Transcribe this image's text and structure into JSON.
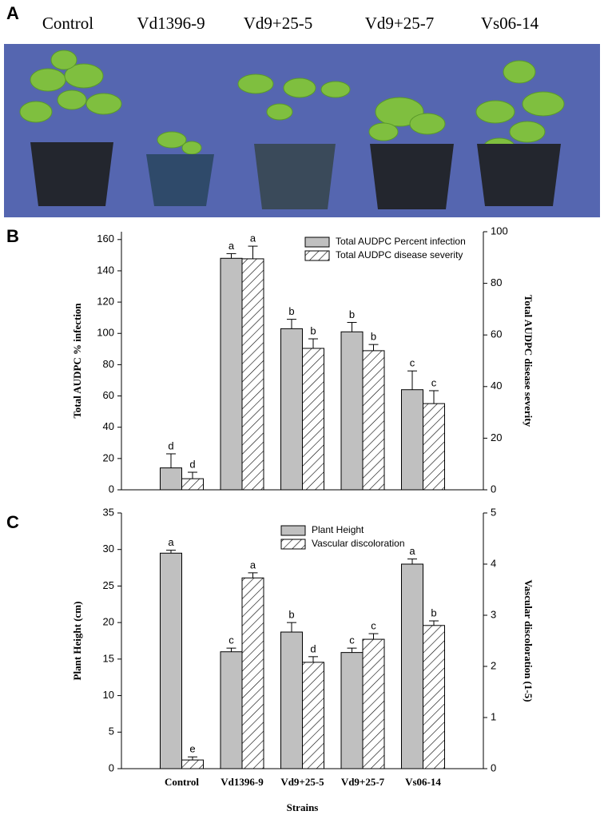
{
  "panel_a": {
    "label": "A",
    "captions": [
      "Control",
      "Vd1396-9",
      "Vd9+25-5",
      "Vd9+25-7",
      "Vs06-14"
    ]
  },
  "chart_data": [
    {
      "type": "bar",
      "panel_label": "B",
      "categories": [
        null,
        null,
        null,
        null,
        null
      ],
      "y_label": "Total AUDPC % infection",
      "y2_label": "Total AUDPC disease severity",
      "ylim": [
        0,
        165
      ],
      "yticks": [
        0,
        20,
        40,
        60,
        80,
        100,
        120,
        140,
        160
      ],
      "y2lim": [
        0,
        100
      ],
      "y2ticks": [
        0,
        20,
        40,
        60,
        80,
        100
      ],
      "legend": "upper right",
      "series": [
        {
          "name": "Total AUDPC Percent infection",
          "color": "#c0c0c0",
          "pattern": "solid",
          "values": [
            14,
            148,
            103,
            101,
            64
          ],
          "errors": [
            9,
            3,
            6,
            6,
            12
          ],
          "letters": [
            "d",
            "a",
            "b",
            "b",
            "c"
          ]
        },
        {
          "name": "Total AUDPC disease severity",
          "color": "#ffffff",
          "pattern": "hatch",
          "axis": "y2",
          "values": [
            4.3,
            89.5,
            54.8,
            53.9,
            33.4
          ],
          "errors": [
            2.5,
            4.9,
            3.7,
            2.4,
            5.0
          ],
          "letters": [
            "d",
            "a",
            "b",
            "b",
            "c"
          ]
        }
      ]
    },
    {
      "type": "bar",
      "panel_label": "C",
      "categories": [
        "Control",
        "Vd1396-9",
        "Vd9+25-5",
        "Vd9+25-7",
        "Vs06-14"
      ],
      "x_label": "Strains",
      "y_label": "Plant Height (cm)",
      "y2_label": "Vascular discoloration (1-5)",
      "ylim": [
        0,
        35
      ],
      "yticks": [
        0,
        5,
        10,
        15,
        20,
        25,
        30,
        35
      ],
      "y2lim": [
        0,
        5
      ],
      "y2ticks": [
        0,
        1,
        2,
        3,
        4,
        5
      ],
      "legend": "upper center",
      "series": [
        {
          "name": "Plant Height",
          "color": "#c0c0c0",
          "pattern": "solid",
          "values": [
            29.5,
            16,
            18.7,
            15.9,
            28
          ],
          "errors": [
            0.4,
            0.5,
            1.3,
            0.6,
            0.7
          ],
          "letters": [
            "a",
            "c",
            "b",
            "c",
            "a"
          ]
        },
        {
          "name": "Vascular discoloration",
          "color": "#ffffff",
          "pattern": "hatch",
          "axis": "y2",
          "values": [
            0.17,
            3.73,
            2.08,
            2.53,
            2.8
          ],
          "errors": [
            0.06,
            0.1,
            0.11,
            0.11,
            0.09
          ],
          "letters": [
            "e",
            "a",
            "d",
            "c",
            "b"
          ]
        }
      ]
    }
  ]
}
